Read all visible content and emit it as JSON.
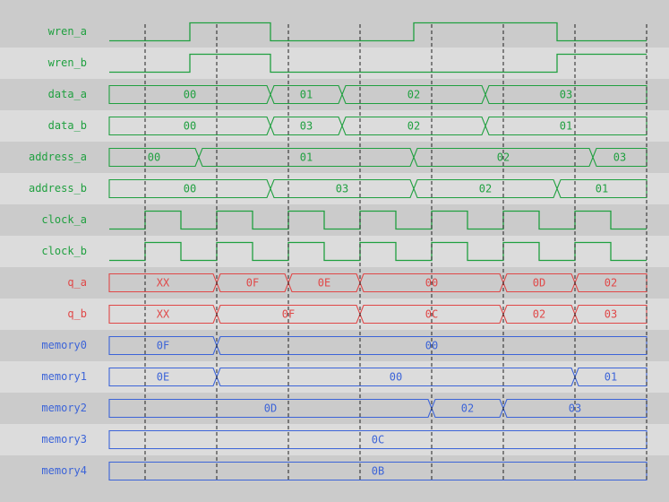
{
  "time_unit_note": "",
  "diagram": {
    "end_time": 7.5,
    "grid_times": [
      0.5,
      1.5,
      2.5,
      3.5,
      4.5,
      5.5,
      6.5,
      7.5
    ],
    "colors": {
      "input": "#20a040",
      "output": "#e04848",
      "memory": "#3c64d8",
      "grid": "#222222",
      "row_dark": "#cbcbcb",
      "row_light": "#dcdcdc"
    },
    "signals": [
      {
        "name": "wren_a",
        "kind": "bit",
        "group": "input",
        "initial": 0,
        "transitions": [
          1.125,
          2.25,
          4.25,
          6.25
        ]
      },
      {
        "name": "wren_b",
        "kind": "bit",
        "group": "input",
        "initial": 0,
        "transitions": [
          1.125,
          2.25,
          6.25
        ]
      },
      {
        "name": "data_a",
        "kind": "bus",
        "group": "input",
        "segments": [
          {
            "from": 0,
            "to": 2.25,
            "value": "00"
          },
          {
            "from": 2.25,
            "to": 3.25,
            "value": "01"
          },
          {
            "from": 3.25,
            "to": 5.25,
            "value": "02"
          },
          {
            "from": 5.25,
            "to": 7.5,
            "value": "03"
          }
        ]
      },
      {
        "name": "data_b",
        "kind": "bus",
        "group": "input",
        "segments": [
          {
            "from": 0,
            "to": 2.25,
            "value": "00"
          },
          {
            "from": 2.25,
            "to": 3.25,
            "value": "03"
          },
          {
            "from": 3.25,
            "to": 5.25,
            "value": "02"
          },
          {
            "from": 5.25,
            "to": 7.5,
            "value": "01"
          }
        ]
      },
      {
        "name": "address_a",
        "kind": "bus",
        "group": "input",
        "segments": [
          {
            "from": 0,
            "to": 1.25,
            "value": "00"
          },
          {
            "from": 1.25,
            "to": 4.25,
            "value": "01"
          },
          {
            "from": 4.25,
            "to": 6.75,
            "value": "02"
          },
          {
            "from": 6.75,
            "to": 7.5,
            "value": "03"
          }
        ]
      },
      {
        "name": "address_b",
        "kind": "bus",
        "group": "input",
        "segments": [
          {
            "from": 0,
            "to": 2.25,
            "value": "00"
          },
          {
            "from": 2.25,
            "to": 4.25,
            "value": "03"
          },
          {
            "from": 4.25,
            "to": 6.25,
            "value": "02"
          },
          {
            "from": 6.25,
            "to": 7.5,
            "value": "01"
          }
        ]
      },
      {
        "name": "clock_a",
        "kind": "clock",
        "group": "input",
        "first_rise": 0.5,
        "period": 1,
        "duty": 0.5
      },
      {
        "name": "clock_b",
        "kind": "clock",
        "group": "input",
        "first_rise": 0.5,
        "period": 1,
        "duty": 0.5
      },
      {
        "name": "q_a",
        "kind": "bus",
        "group": "output",
        "segments": [
          {
            "from": 0,
            "to": 1.5,
            "value": "XX"
          },
          {
            "from": 1.5,
            "to": 2.5,
            "value": "0F"
          },
          {
            "from": 2.5,
            "to": 3.5,
            "value": "0E"
          },
          {
            "from": 3.5,
            "to": 5.5,
            "value": "00"
          },
          {
            "from": 5.5,
            "to": 6.5,
            "value": "0D"
          },
          {
            "from": 6.5,
            "to": 7.5,
            "value": "02"
          }
        ]
      },
      {
        "name": "q_b",
        "kind": "bus",
        "group": "output",
        "segments": [
          {
            "from": 0,
            "to": 1.5,
            "value": "XX"
          },
          {
            "from": 1.5,
            "to": 3.5,
            "value": "0F"
          },
          {
            "from": 3.5,
            "to": 5.5,
            "value": "0C"
          },
          {
            "from": 5.5,
            "to": 6.5,
            "value": "02"
          },
          {
            "from": 6.5,
            "to": 7.5,
            "value": "03"
          }
        ]
      },
      {
        "name": "memory0",
        "kind": "bus",
        "group": "memory",
        "segments": [
          {
            "from": 0,
            "to": 1.5,
            "value": "0F"
          },
          {
            "from": 1.5,
            "to": 7.5,
            "value": "00"
          }
        ]
      },
      {
        "name": "memory1",
        "kind": "bus",
        "group": "memory",
        "segments": [
          {
            "from": 0,
            "to": 1.5,
            "value": "0E"
          },
          {
            "from": 1.5,
            "to": 6.5,
            "value": "00"
          },
          {
            "from": 6.5,
            "to": 7.5,
            "value": "01"
          }
        ]
      },
      {
        "name": "memory2",
        "kind": "bus",
        "group": "memory",
        "segments": [
          {
            "from": 0,
            "to": 4.5,
            "value": "0D"
          },
          {
            "from": 4.5,
            "to": 5.5,
            "value": "02"
          },
          {
            "from": 5.5,
            "to": 7.5,
            "value": "03"
          }
        ]
      },
      {
        "name": "memory3",
        "kind": "bus",
        "group": "memory",
        "segments": [
          {
            "from": 0,
            "to": 7.5,
            "value": "0C"
          }
        ]
      },
      {
        "name": "memory4",
        "kind": "bus",
        "group": "memory",
        "segments": [
          {
            "from": 0,
            "to": 7.5,
            "value": "0B"
          }
        ]
      }
    ]
  }
}
